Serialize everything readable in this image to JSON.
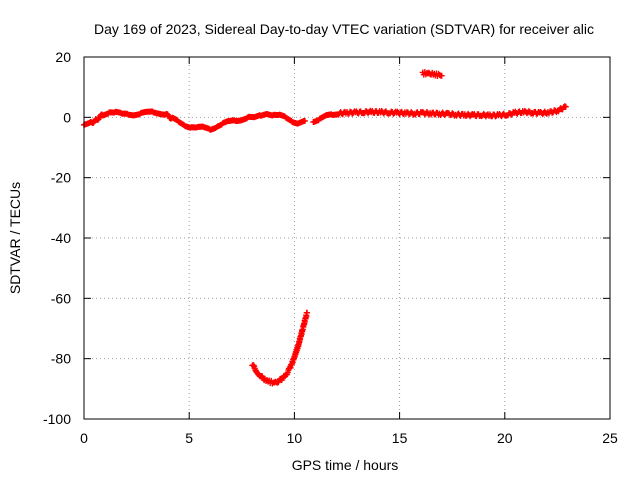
{
  "chart_data": {
    "type": "scatter",
    "title": "Day 169 of 2023, Sidereal Day-to-day VTEC variation (SDTVAR) for receiver alic",
    "xlabel": "GPS time / hours",
    "ylabel": "SDTVAR / TECUs",
    "xlim": [
      0,
      25
    ],
    "ylim": [
      -100,
      20
    ],
    "xticks": [
      0,
      5,
      10,
      15,
      20,
      25
    ],
    "yticks": [
      -100,
      -80,
      -60,
      -40,
      -20,
      0,
      20
    ],
    "grid": true,
    "series": [
      {
        "color": "#ff0000",
        "marker": "plus",
        "segments": [
          [
            [
              0.0,
              -2.5
            ],
            [
              0.3,
              -2.0
            ],
            [
              0.6,
              -0.8
            ],
            [
              0.9,
              1.0
            ],
            [
              1.2,
              1.8
            ],
            [
              1.5,
              1.5
            ],
            [
              1.8,
              1.0
            ],
            [
              2.1,
              1.2
            ],
            [
              2.4,
              1.0
            ],
            [
              2.7,
              1.2
            ],
            [
              3.0,
              1.5
            ],
            [
              3.3,
              1.8
            ],
            [
              3.6,
              1.5
            ],
            [
              3.9,
              1.0
            ],
            [
              4.2,
              -0.5
            ],
            [
              4.5,
              -1.5
            ],
            [
              4.8,
              -2.5
            ],
            [
              5.1,
              -3.2
            ],
            [
              5.4,
              -3.6
            ],
            [
              5.7,
              -3.4
            ],
            [
              6.0,
              -3.8
            ],
            [
              6.3,
              -3.0
            ],
            [
              6.6,
              -2.2
            ],
            [
              6.9,
              -1.5
            ],
            [
              7.2,
              -1.0
            ],
            [
              7.5,
              -0.6
            ],
            [
              7.8,
              0.0
            ],
            [
              8.1,
              -0.3
            ],
            [
              8.4,
              0.6
            ],
            [
              8.7,
              1.5
            ],
            [
              9.0,
              0.8
            ],
            [
              9.3,
              0.5
            ],
            [
              9.6,
              -0.2
            ],
            [
              9.9,
              -1.2
            ],
            [
              10.2,
              -1.8
            ],
            [
              10.5,
              -1.2
            ]
          ],
          [
            [
              10.9,
              -1.2
            ],
            [
              11.2,
              -0.6
            ],
            [
              11.5,
              0.3
            ],
            [
              11.8,
              0.8
            ],
            [
              12.1,
              1.3
            ],
            [
              12.5,
              1.5
            ],
            [
              12.9,
              1.6
            ],
            [
              13.3,
              1.7
            ],
            [
              13.7,
              1.8
            ],
            [
              14.1,
              1.7
            ],
            [
              14.5,
              1.6
            ],
            [
              14.9,
              1.5
            ],
            [
              15.3,
              1.4
            ],
            [
              15.7,
              1.3
            ],
            [
              16.1,
              1.4
            ],
            [
              16.5,
              1.3
            ],
            [
              16.9,
              1.2
            ],
            [
              17.3,
              1.1
            ],
            [
              17.7,
              0.9
            ],
            [
              18.1,
              0.8
            ],
            [
              18.5,
              0.7
            ],
            [
              18.9,
              0.8
            ],
            [
              19.3,
              0.6
            ],
            [
              19.7,
              0.7
            ],
            [
              20.1,
              0.9
            ],
            [
              20.5,
              1.5
            ],
            [
              20.9,
              1.8
            ],
            [
              21.3,
              1.6
            ],
            [
              21.7,
              1.4
            ],
            [
              22.1,
              1.6
            ],
            [
              22.5,
              2.2
            ],
            [
              22.9,
              3.5
            ]
          ],
          [
            [
              16.1,
              14.5
            ],
            [
              16.3,
              14.7
            ],
            [
              16.5,
              14.5
            ],
            [
              16.7,
              14.2
            ],
            [
              16.9,
              14.0
            ],
            [
              17.0,
              13.8
            ]
          ],
          [
            [
              8.0,
              -82.0
            ],
            [
              8.2,
              -84.0
            ],
            [
              8.4,
              -85.8
            ],
            [
              8.6,
              -87.0
            ],
            [
              8.8,
              -87.6
            ],
            [
              9.0,
              -87.9
            ],
            [
              9.2,
              -87.6
            ],
            [
              9.4,
              -86.8
            ],
            [
              9.6,
              -85.4
            ],
            [
              9.8,
              -83.0
            ],
            [
              10.0,
              -79.5
            ],
            [
              10.2,
              -75.2
            ],
            [
              10.4,
              -70.0
            ],
            [
              10.6,
              -64.8
            ]
          ]
        ]
      }
    ]
  }
}
